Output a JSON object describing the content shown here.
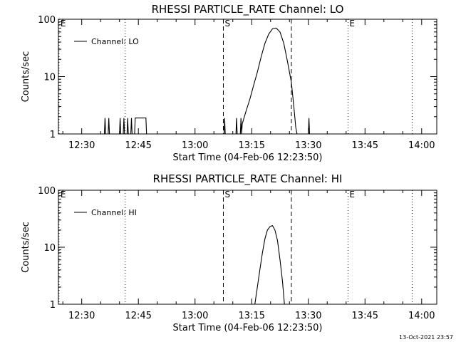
{
  "chart_data": [
    {
      "type": "line",
      "title": "RHESSI PARTICLE_RATE Channel: LO",
      "xlabel": "Start Time (04-Feb-06 12:23:50)",
      "ylabel": "Counts/sec",
      "y_scale": "log",
      "ylim": [
        1,
        100
      ],
      "xlim": [
        "12:23:50",
        "14:04:00"
      ],
      "x_ticks": [
        "12:30",
        "12:45",
        "13:00",
        "13:15",
        "13:30",
        "13:45",
        "14:00"
      ],
      "y_ticks": [
        "1",
        "10",
        "100"
      ],
      "legend": {
        "placement": "top-left",
        "entries": [
          "Channel: LO"
        ]
      },
      "markers": [
        {
          "label": "E",
          "time": "12:24:00",
          "style": "dotted"
        },
        {
          "label": "",
          "time": "12:41:30",
          "style": "dotted"
        },
        {
          "label": "S",
          "time": "13:07:30",
          "style": "dashed"
        },
        {
          "label": "",
          "time": "13:25:30",
          "style": "dashed"
        },
        {
          "label": "E",
          "time": "13:40:30",
          "style": "dotted"
        },
        {
          "label": "",
          "time": "13:57:30",
          "style": "dotted"
        }
      ],
      "series": [
        {
          "name": "Channel: LO",
          "points": [
            [
              "12:23:50",
              1
            ],
            [
              "12:36:00",
              1
            ],
            [
              "12:36:10",
              1.9
            ],
            [
              "12:36:20",
              1
            ],
            [
              "12:37:00",
              1
            ],
            [
              "12:37:10",
              1.9
            ],
            [
              "12:37:20",
              1
            ],
            [
              "12:40:00",
              1
            ],
            [
              "12:40:10",
              1.9
            ],
            [
              "12:40:20",
              1
            ],
            [
              "12:41:00",
              1
            ],
            [
              "12:41:10",
              1.9
            ],
            [
              "12:41:20",
              1
            ],
            [
              "12:42:00",
              1
            ],
            [
              "12:42:10",
              1.9
            ],
            [
              "12:42:20",
              1
            ],
            [
              "12:43:00",
              1
            ],
            [
              "12:43:10",
              1.9
            ],
            [
              "12:43:20",
              1
            ],
            [
              "12:44:00",
              1
            ],
            [
              "12:44:10",
              1.9
            ],
            [
              "12:47:00",
              1.9
            ],
            [
              "12:47:10",
              1
            ],
            [
              "13:07:40",
              1
            ],
            [
              "13:07:50",
              1.9
            ],
            [
              "13:08:00",
              1
            ],
            [
              "13:10:50",
              1
            ],
            [
              "13:11:00",
              1.9
            ],
            [
              "13:11:10",
              1
            ],
            [
              "13:12:00",
              1
            ],
            [
              "13:12:10",
              1.9
            ],
            [
              "13:12:20",
              1
            ],
            [
              "13:12:30",
              1.5
            ],
            [
              "13:13:30",
              2.5
            ],
            [
              "13:14:30",
              4
            ],
            [
              "13:15:30",
              7
            ],
            [
              "13:16:30",
              12
            ],
            [
              "13:17:30",
              22
            ],
            [
              "13:18:30",
              38
            ],
            [
              "13:19:30",
              55
            ],
            [
              "13:20:30",
              68
            ],
            [
              "13:21:30",
              70
            ],
            [
              "13:22:30",
              60
            ],
            [
              "13:23:30",
              38
            ],
            [
              "13:24:30",
              18
            ],
            [
              "13:25:30",
              8
            ],
            [
              "13:26:10",
              3
            ],
            [
              "13:26:40",
              1.3
            ],
            [
              "13:27:00",
              1
            ],
            [
              "13:30:00",
              1
            ],
            [
              "13:30:10",
              1.9
            ],
            [
              "13:30:20",
              1
            ],
            [
              "14:04:00",
              1
            ]
          ]
        }
      ]
    },
    {
      "type": "line",
      "title": "RHESSI PARTICLE_RATE Channel: HI",
      "xlabel": "Start Time (04-Feb-06 12:23:50)",
      "ylabel": "Counts/sec",
      "y_scale": "log",
      "ylim": [
        1,
        100
      ],
      "xlim": [
        "12:23:50",
        "14:04:00"
      ],
      "x_ticks": [
        "12:30",
        "12:45",
        "13:00",
        "13:15",
        "13:30",
        "13:45",
        "14:00"
      ],
      "y_ticks": [
        "1",
        "10",
        "100"
      ],
      "legend": {
        "placement": "top-left",
        "entries": [
          "Channel: HI"
        ]
      },
      "markers": [
        {
          "label": "E",
          "time": "12:24:00",
          "style": "dotted"
        },
        {
          "label": "",
          "time": "12:41:30",
          "style": "dotted"
        },
        {
          "label": "S",
          "time": "13:07:30",
          "style": "dashed"
        },
        {
          "label": "",
          "time": "13:25:30",
          "style": "dashed"
        },
        {
          "label": "E",
          "time": "13:40:30",
          "style": "dotted"
        },
        {
          "label": "",
          "time": "13:57:30",
          "style": "dotted"
        }
      ],
      "series": [
        {
          "name": "Channel: HI",
          "points": [
            [
              "13:15:50",
              1
            ],
            [
              "13:16:30",
              2
            ],
            [
              "13:17:10",
              4
            ],
            [
              "13:17:50",
              8
            ],
            [
              "13:18:30",
              14
            ],
            [
              "13:19:10",
              20
            ],
            [
              "13:19:50",
              23
            ],
            [
              "13:20:30",
              24
            ],
            [
              "13:21:10",
              20
            ],
            [
              "13:21:50",
              13
            ],
            [
              "13:22:30",
              6
            ],
            [
              "13:23:10",
              2.5
            ],
            [
              "13:23:40",
              1
            ]
          ]
        }
      ]
    }
  ],
  "footer": {
    "timestamp": "13-Oct-2021 23:57"
  }
}
